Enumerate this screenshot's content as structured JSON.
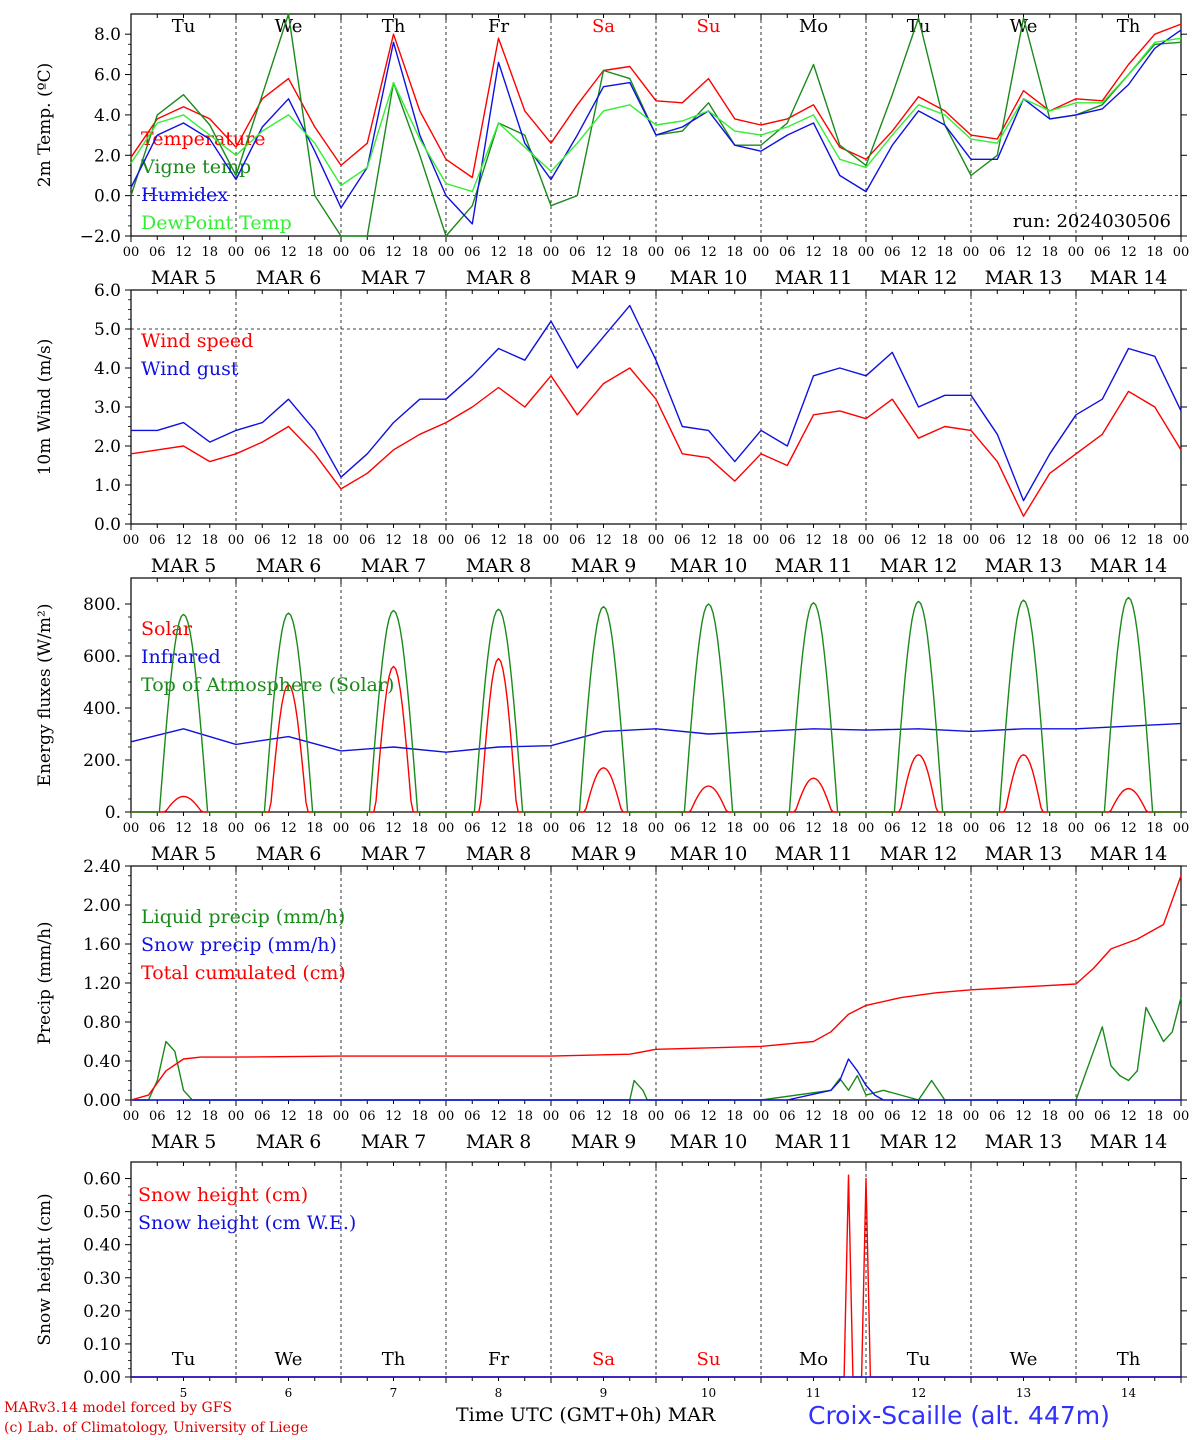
{
  "footer": {
    "credit_line1": "MARv3.14 model forced by GFS",
    "credit_line2": "(c) Lab. of Climatology, University of Liege",
    "x_title": "Time UTC (GMT+0h)",
    "x_title_month": "MAR",
    "station": "Croix-Scaille (alt. 447m)"
  },
  "colors": {
    "red": "#ff0000",
    "green": "#1a8a1a",
    "blue": "#1010e0",
    "light_green": "#33ee33",
    "weekend": "#ff0000"
  },
  "chart_data": [
    {
      "type": "line",
      "ylabel": "2m Temp. (ºC)",
      "ylim": [
        -2,
        9
      ],
      "yticks": [
        "−2.0",
        "0.0",
        "2.0",
        "4.0",
        "6.0",
        "8.0"
      ],
      "ytick_values": [
        -2,
        0,
        2,
        4,
        6,
        8
      ],
      "annotation": "run: 2024030506",
      "weekdays": [
        "Tu",
        "We",
        "Th",
        "Fr",
        "Sa",
        "Su",
        "Mo",
        "Tu",
        "We",
        "Th"
      ],
      "x_hours_labels": [
        "00",
        "06",
        "12",
        "18"
      ],
      "x_dates": [
        "MAR 5",
        "MAR 6",
        "MAR 7",
        "MAR 8",
        "MAR 9",
        "MAR 10",
        "MAR 11",
        "MAR 12",
        "MAR 13",
        "MAR 14"
      ],
      "series": [
        {
          "name": "Temperature",
          "color": "#ff0000",
          "x": [
            0,
            6,
            12,
            18,
            24,
            30,
            36,
            42,
            48,
            54,
            60,
            66,
            72,
            78,
            84,
            90,
            96,
            102,
            108,
            114,
            120,
            126,
            132,
            138,
            144,
            150,
            156,
            162,
            168,
            174,
            180,
            186,
            192,
            198,
            204,
            210,
            216,
            222,
            228,
            234,
            240
          ],
          "y": [
            1.9,
            3.8,
            4.4,
            3.8,
            2.4,
            4.8,
            5.8,
            3.4,
            1.5,
            2.6,
            8.0,
            4.2,
            1.8,
            0.9,
            7.8,
            4.2,
            2.6,
            4.5,
            6.2,
            6.4,
            4.7,
            4.6,
            5.8,
            3.8,
            3.5,
            3.8,
            4.5,
            2.4,
            1.8,
            3.2,
            4.9,
            4.2,
            3.0,
            2.8,
            5.2,
            4.2,
            4.8,
            4.7,
            6.5,
            8.0,
            8.5
          ]
        },
        {
          "name": "Vigne temp",
          "color": "#1a8a1a",
          "x": [
            0,
            6,
            12,
            18,
            24,
            30,
            36,
            42,
            48,
            54,
            60,
            66,
            72,
            78,
            84,
            90,
            96,
            102,
            108,
            114,
            120,
            126,
            132,
            138,
            144,
            150,
            156,
            162,
            168,
            174,
            180,
            186,
            192,
            198,
            204,
            210,
            216,
            222,
            228,
            234,
            240
          ],
          "y": [
            0.0,
            4.0,
            5.0,
            3.5,
            1.0,
            5.0,
            9.0,
            0.0,
            -2.0,
            -2.0,
            5.6,
            2.0,
            -2.0,
            -0.5,
            3.6,
            3.0,
            -0.5,
            0.0,
            6.2,
            5.8,
            3.0,
            3.2,
            4.6,
            2.5,
            2.5,
            3.6,
            6.5,
            2.5,
            1.5,
            5.0,
            8.8,
            3.5,
            1.0,
            2.0,
            8.8,
            3.8,
            4.0,
            4.5,
            6.0,
            7.5,
            7.6
          ]
        },
        {
          "name": "Humidex",
          "color": "#1010e0",
          "x": [
            0,
            6,
            12,
            18,
            24,
            30,
            36,
            42,
            48,
            54,
            60,
            66,
            72,
            78,
            84,
            90,
            96,
            102,
            108,
            114,
            120,
            126,
            132,
            138,
            144,
            150,
            156,
            162,
            168,
            174,
            180,
            186,
            192,
            198,
            204,
            210,
            216,
            222,
            228,
            234,
            240
          ],
          "y": [
            0.4,
            3.0,
            3.6,
            2.8,
            0.8,
            3.4,
            4.8,
            2.2,
            -0.6,
            1.4,
            7.6,
            3.0,
            0.0,
            -1.4,
            6.6,
            2.6,
            0.8,
            3.0,
            5.4,
            5.6,
            3.0,
            3.4,
            4.2,
            2.5,
            2.2,
            3.0,
            3.6,
            1.0,
            0.2,
            2.5,
            4.2,
            3.5,
            1.8,
            1.8,
            4.8,
            3.8,
            4.0,
            4.3,
            5.5,
            7.3,
            8.2
          ]
        },
        {
          "name": "DewPoint Temp",
          "color": "#33ee33",
          "x": [
            0,
            6,
            12,
            18,
            24,
            30,
            36,
            42,
            48,
            54,
            60,
            66,
            72,
            78,
            84,
            90,
            96,
            102,
            108,
            114,
            120,
            126,
            132,
            138,
            144,
            150,
            156,
            162,
            168,
            174,
            180,
            186,
            192,
            198,
            204,
            210,
            216,
            222,
            228,
            234,
            240
          ],
          "y": [
            1.6,
            3.6,
            4.0,
            3.0,
            2.0,
            3.2,
            4.0,
            2.6,
            0.5,
            1.4,
            5.6,
            2.8,
            0.6,
            0.2,
            3.6,
            2.4,
            1.2,
            2.6,
            4.2,
            4.5,
            3.5,
            3.7,
            4.2,
            3.2,
            3.0,
            3.4,
            4.0,
            1.8,
            1.4,
            3.0,
            4.5,
            4.0,
            2.8,
            2.6,
            4.8,
            4.2,
            4.6,
            4.6,
            6.0,
            7.6,
            7.8
          ]
        }
      ]
    },
    {
      "type": "line",
      "ylabel": "10m Wind (m/s)",
      "ylim": [
        0,
        6
      ],
      "yticks": [
        "0.0",
        "1.0",
        "2.0",
        "3.0",
        "4.0",
        "5.0",
        "6.0"
      ],
      "ytick_values": [
        0,
        1,
        2,
        3,
        4,
        5,
        6
      ],
      "x_hours_labels": [
        "00",
        "06",
        "12",
        "18"
      ],
      "x_dates": [
        "MAR 5",
        "MAR 6",
        "MAR 7",
        "MAR 8",
        "MAR 9",
        "MAR 10",
        "MAR 11",
        "MAR 12",
        "MAR 13",
        "MAR 14"
      ],
      "series": [
        {
          "name": "Wind speed",
          "color": "#ff0000",
          "x": [
            0,
            6,
            12,
            18,
            24,
            30,
            36,
            42,
            48,
            54,
            60,
            66,
            72,
            78,
            84,
            90,
            96,
            102,
            108,
            114,
            120,
            126,
            132,
            138,
            144,
            150,
            156,
            162,
            168,
            174,
            180,
            186,
            192,
            198,
            204,
            210,
            216,
            222,
            228,
            234,
            240
          ],
          "y": [
            1.8,
            1.9,
            2.0,
            1.6,
            1.8,
            2.1,
            2.5,
            1.8,
            0.9,
            1.3,
            1.9,
            2.3,
            2.6,
            3.0,
            3.5,
            3.0,
            3.8,
            2.8,
            3.6,
            4.0,
            3.2,
            1.8,
            1.7,
            1.1,
            1.8,
            1.5,
            2.8,
            2.9,
            2.7,
            3.2,
            2.2,
            2.5,
            2.4,
            1.6,
            0.2,
            1.3,
            1.8,
            2.3,
            3.4,
            3.0,
            1.9
          ]
        },
        {
          "name": "Wind gust",
          "color": "#1010e0",
          "x": [
            0,
            6,
            12,
            18,
            24,
            30,
            36,
            42,
            48,
            54,
            60,
            66,
            72,
            78,
            84,
            90,
            96,
            102,
            108,
            114,
            120,
            126,
            132,
            138,
            144,
            150,
            156,
            162,
            168,
            174,
            180,
            186,
            192,
            198,
            204,
            210,
            216,
            222,
            228,
            234,
            240
          ],
          "y": [
            2.4,
            2.4,
            2.6,
            2.1,
            2.4,
            2.6,
            3.2,
            2.4,
            1.2,
            1.8,
            2.6,
            3.2,
            3.2,
            3.8,
            4.5,
            4.2,
            5.2,
            4.0,
            4.8,
            5.6,
            4.2,
            2.5,
            2.4,
            1.6,
            2.4,
            2.0,
            3.8,
            4.0,
            3.8,
            4.4,
            3.0,
            3.3,
            3.3,
            2.3,
            0.6,
            1.8,
            2.8,
            3.2,
            4.5,
            4.3,
            2.9
          ]
        }
      ]
    },
    {
      "type": "line",
      "ylabel": "Energy fluxes (W/m²)",
      "ylim": [
        0,
        900
      ],
      "yticks": [
        "0.",
        "200.",
        "400.",
        "600.",
        "800."
      ],
      "ytick_values": [
        0,
        200,
        400,
        600,
        800
      ],
      "x_hours_labels": [
        "00",
        "06",
        "12",
        "18"
      ],
      "x_dates": [
        "MAR 5",
        "MAR 6",
        "MAR 7",
        "MAR 8",
        "MAR 9",
        "MAR 10",
        "MAR 11",
        "MAR 12",
        "MAR 13",
        "MAR 14"
      ],
      "series": [
        {
          "name": "Solar",
          "color": "#ff0000",
          "daily_peaks": [
            60,
            490,
            560,
            590,
            170,
            100,
            130,
            220,
            220,
            90
          ]
        },
        {
          "name": "Infrared",
          "color": "#1010e0",
          "x": [
            0,
            12,
            24,
            36,
            48,
            60,
            72,
            84,
            96,
            108,
            120,
            132,
            144,
            156,
            168,
            180,
            192,
            204,
            216,
            228,
            240
          ],
          "y": [
            270,
            320,
            260,
            290,
            235,
            250,
            230,
            250,
            255,
            310,
            320,
            300,
            310,
            320,
            315,
            320,
            310,
            320,
            320,
            330,
            340
          ]
        },
        {
          "name": "Top of Atmosphere (Solar)",
          "color": "#1a8a1a",
          "daily_peaks": [
            760,
            765,
            775,
            780,
            790,
            800,
            805,
            810,
            815,
            825
          ]
        }
      ]
    },
    {
      "type": "line",
      "ylabel": "Precip (mm/h)",
      "ylim": [
        0,
        2.4
      ],
      "yticks": [
        "0.00",
        "0.40",
        "0.80",
        "1.20",
        "1.60",
        "2.00",
        "2.40"
      ],
      "ytick_values": [
        0,
        0.4,
        0.8,
        1.2,
        1.6,
        2.0,
        2.4
      ],
      "x_hours_labels": [
        "00",
        "06",
        "12",
        "18"
      ],
      "x_dates": [
        "MAR 5",
        "MAR 6",
        "MAR 7",
        "MAR 8",
        "MAR 9",
        "MAR 10",
        "MAR 11",
        "MAR 12",
        "MAR 13",
        "MAR 14"
      ],
      "series": [
        {
          "name": "Liquid precip (mm/h)",
          "color": "#1a8a1a",
          "x": [
            0,
            4,
            6,
            8,
            10,
            12,
            14,
            18,
            24,
            96,
            114,
            115,
            117,
            118,
            120,
            144,
            160,
            162,
            164,
            166,
            168,
            172,
            180,
            183,
            186,
            192,
            208,
            216,
            220,
            222,
            224,
            226,
            228,
            230,
            232,
            236,
            238,
            240
          ],
          "y": [
            0,
            0,
            0.2,
            0.6,
            0.5,
            0.1,
            0,
            0,
            0,
            0,
            0,
            0.2,
            0.1,
            0,
            0,
            0,
            0.1,
            0.22,
            0.1,
            0.25,
            0.05,
            0.1,
            0,
            0.2,
            0,
            0,
            0,
            0,
            0.5,
            0.75,
            0.35,
            0.25,
            0.2,
            0.3,
            0.95,
            0.6,
            0.7,
            1.05
          ]
        },
        {
          "name": "Snow precip (mm/h)",
          "color": "#1010e0",
          "x": [
            0,
            150,
            160,
            162,
            164,
            166,
            168,
            170,
            172,
            240
          ],
          "y": [
            0,
            0,
            0.1,
            0.2,
            0.42,
            0.3,
            0.15,
            0.05,
            0,
            0
          ]
        },
        {
          "name": "Total cumulated (cm)",
          "color": "#ff0000",
          "x": [
            0,
            4,
            8,
            12,
            16,
            24,
            48,
            72,
            96,
            114,
            120,
            144,
            156,
            160,
            164,
            168,
            176,
            184,
            192,
            208,
            216,
            220,
            224,
            230,
            236,
            240
          ],
          "y": [
            0,
            0.05,
            0.3,
            0.42,
            0.44,
            0.44,
            0.45,
            0.45,
            0.45,
            0.47,
            0.52,
            0.55,
            0.6,
            0.7,
            0.88,
            0.97,
            1.05,
            1.1,
            1.13,
            1.17,
            1.19,
            1.35,
            1.55,
            1.65,
            1.8,
            2.3
          ]
        }
      ]
    },
    {
      "type": "line",
      "ylabel": "Snow height (cm)",
      "ylim": [
        0,
        0.65
      ],
      "yticks": [
        "0.00",
        "0.10",
        "0.20",
        "0.30",
        "0.40",
        "0.50",
        "0.60"
      ],
      "ytick_values": [
        0,
        0.1,
        0.2,
        0.3,
        0.4,
        0.5,
        0.6
      ],
      "weekdays": [
        "Tu",
        "We",
        "Th",
        "Fr",
        "Sa",
        "Su",
        "Mo",
        "Tu",
        "We",
        "Th"
      ],
      "x_day_numbers": [
        "5",
        "6",
        "7",
        "8",
        "9",
        "10",
        "11",
        "12",
        "13",
        "14"
      ],
      "series": [
        {
          "name": "Snow height (cm)",
          "color": "#ff0000",
          "x": [
            0,
            163,
            164,
            165,
            166,
            167,
            168,
            169,
            240
          ],
          "y": [
            0,
            0,
            0.61,
            0,
            0,
            0,
            0.6,
            0,
            0
          ]
        },
        {
          "name": "Snow height (cm W.E.)",
          "color": "#1010e0",
          "x": [
            0,
            240
          ],
          "y": [
            0,
            0
          ]
        }
      ]
    }
  ]
}
